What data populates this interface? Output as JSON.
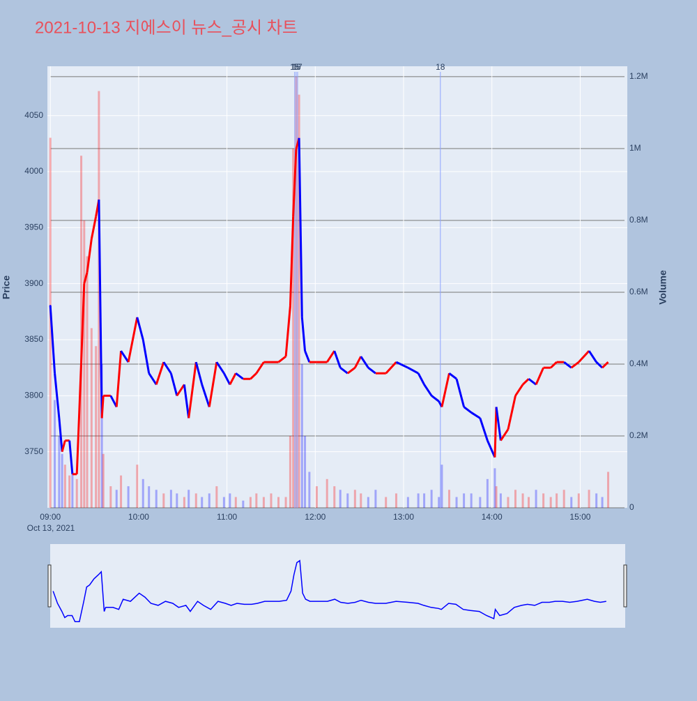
{
  "chart_data": {
    "type": "price-volume",
    "title": "2021-10-13 지에스이 뉴스_공시 차트",
    "y_label": "Price",
    "y2_label": "Volume",
    "date_label": "Oct 13, 2021",
    "up_color": "#ff0000",
    "down_color": "#0000ff",
    "xlim": [
      "08:58",
      "15:32"
    ],
    "xticks": [
      "09:00",
      "10:00",
      "11:00",
      "12:00",
      "13:00",
      "14:00",
      "15:00"
    ],
    "ylim": [
      3700,
      4094
    ],
    "yticks": [
      3750,
      3800,
      3850,
      3900,
      3950,
      4000,
      4050
    ],
    "y2lim": [
      0,
      1229000
    ],
    "y2ticks": [
      0,
      {
        "value": 200000,
        "label": "0.2M"
      },
      {
        "value": 400000,
        "label": "0.4M"
      },
      {
        "value": 600000,
        "label": "0.6M"
      },
      {
        "value": 800000,
        "label": "0.8M"
      },
      {
        "value": 1000000,
        "label": "1M"
      },
      {
        "value": 1200000,
        "label": "1.2M"
      }
    ],
    "annotations": [
      {
        "x": "11:46",
        "text": "15"
      },
      {
        "x": "11:47",
        "text": "16"
      },
      {
        "x": "11:48",
        "text": "17"
      },
      {
        "x": "13:25",
        "text": "18"
      }
    ],
    "x": [
      "09:00",
      "09:03",
      "09:06",
      "09:08",
      "09:10",
      "09:13",
      "09:15",
      "09:18",
      "09:21",
      "09:23",
      "09:25",
      "09:28",
      "09:31",
      "09:33",
      "09:35",
      "09:36",
      "09:41",
      "09:45",
      "09:48",
      "09:53",
      "09:59",
      "10:03",
      "10:07",
      "10:12",
      "10:17",
      "10:22",
      "10:26",
      "10:31",
      "10:34",
      "10:39",
      "10:43",
      "10:48",
      "10:53",
      "10:58",
      "11:02",
      "11:06",
      "11:11",
      "11:16",
      "11:20",
      "11:25",
      "11:30",
      "11:35",
      "11:40",
      "11:43",
      "11:45",
      "11:47",
      "11:49",
      "11:51",
      "11:53",
      "11:56",
      "12:01",
      "12:08",
      "12:13",
      "12:17",
      "12:22",
      "12:27",
      "12:31",
      "12:36",
      "12:41",
      "12:48",
      "12:55",
      "13:03",
      "13:10",
      "13:14",
      "13:19",
      "13:24",
      "13:26",
      "13:31",
      "13:36",
      "13:41",
      "13:46",
      "13:52",
      "13:57",
      "14:02",
      "14:03",
      "14:06",
      "14:11",
      "14:16",
      "14:21",
      "14:25",
      "14:30",
      "14:35",
      "14:40",
      "14:44",
      "14:49",
      "14:54",
      "14:59",
      "15:06",
      "15:11",
      "15:15",
      "15:19"
    ],
    "price": [
      3880,
      3820,
      3780,
      3750,
      3760,
      3760,
      3730,
      3730,
      3830,
      3900,
      3910,
      3940,
      3960,
      3975,
      3780,
      3800,
      3800,
      3790,
      3840,
      3830,
      3870,
      3850,
      3820,
      3810,
      3830,
      3820,
      3800,
      3810,
      3780,
      3830,
      3810,
      3790,
      3830,
      3820,
      3810,
      3820,
      3815,
      3815,
      3820,
      3830,
      3830,
      3830,
      3835,
      3880,
      3960,
      4020,
      4030,
      3870,
      3840,
      3830,
      3830,
      3830,
      3840,
      3825,
      3820,
      3825,
      3835,
      3825,
      3820,
      3820,
      3830,
      3825,
      3820,
      3810,
      3800,
      3795,
      3790,
      3820,
      3815,
      3790,
      3785,
      3780,
      3760,
      3745,
      3790,
      3760,
      3770,
      3800,
      3810,
      3815,
      3810,
      3825,
      3825,
      3830,
      3830,
      3825,
      3830,
      3840,
      3830,
      3825,
      3830
    ],
    "volume": [
      1030000,
      300000,
      200000,
      150000,
      120000,
      90000,
      100000,
      80000,
      980000,
      800000,
      700000,
      500000,
      450000,
      1160000,
      400000,
      150000,
      60000,
      50000,
      90000,
      60000,
      120000,
      80000,
      60000,
      50000,
      40000,
      50000,
      40000,
      30000,
      50000,
      40000,
      30000,
      40000,
      60000,
      30000,
      40000,
      30000,
      20000,
      30000,
      40000,
      30000,
      40000,
      30000,
      30000,
      200000,
      1000000,
      1200000,
      1150000,
      400000,
      200000,
      100000,
      60000,
      80000,
      60000,
      50000,
      40000,
      50000,
      40000,
      30000,
      50000,
      30000,
      40000,
      30000,
      40000,
      40000,
      50000,
      30000,
      120000,
      50000,
      30000,
      40000,
      40000,
      30000,
      80000,
      110000,
      60000,
      40000,
      30000,
      50000,
      40000,
      30000,
      50000,
      40000,
      30000,
      40000,
      50000,
      30000,
      40000,
      50000,
      40000,
      30000,
      100000
    ]
  }
}
